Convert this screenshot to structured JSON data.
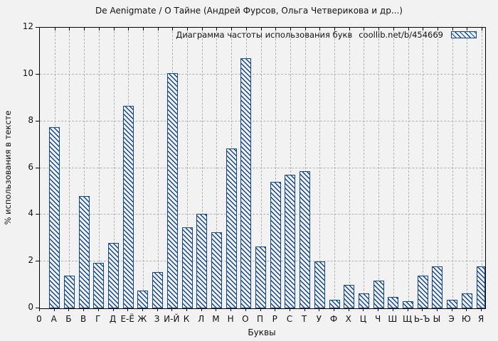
{
  "page": {
    "background": "#f2f2f2"
  },
  "header": {
    "title": "De Aenigmate / О Тайне (Андрей Фурсов, Ольга Четверикова и др...)"
  },
  "legend": {
    "label": "Диаграмма частоты использования букв",
    "source": "coollib.net/b/454669",
    "swatch_icon": "hatched-bar-swatch"
  },
  "colors": {
    "bar_outline": "#0f45a4",
    "bar_fill": "#f2f2f2",
    "hatch": "#0f45a4",
    "grid": "#b2b2b2",
    "axis": "#000000",
    "background": "#f2f2f2"
  },
  "chart_data": {
    "type": "bar",
    "title": "De Aenigmate / О Тайне (Андрей Фурсов, Ольга Четверикова и др...)",
    "xlabel": "Буквы",
    "ylabel": "% использования в тексте",
    "ylim": [
      0,
      12
    ],
    "yticks": [
      0,
      2,
      4,
      6,
      8,
      10,
      12
    ],
    "x_origin_label": "0",
    "grid": true,
    "legend_position": "top-right-inside",
    "bar_style": "blue-diagonal-hatch",
    "categories": [
      "А",
      "Б",
      "В",
      "Г",
      "Д",
      "Е-Ё",
      "Ж",
      "З",
      "И-Й",
      "К",
      "Л",
      "М",
      "Н",
      "О",
      "П",
      "Р",
      "С",
      "Т",
      "У",
      "Ф",
      "Х",
      "Ц",
      "Ч",
      "Ш",
      "Щ",
      "Ь-Ъ",
      "Ы",
      "Э",
      "Ю",
      "Я"
    ],
    "values": [
      7.75,
      1.4,
      4.8,
      1.95,
      2.8,
      8.65,
      0.75,
      1.55,
      10.05,
      3.45,
      4.05,
      3.25,
      6.85,
      10.7,
      2.65,
      5.4,
      5.7,
      5.85,
      2.0,
      0.35,
      1.0,
      0.65,
      1.2,
      0.5,
      0.3,
      1.4,
      1.8,
      0.35,
      0.65,
      1.8
    ]
  }
}
